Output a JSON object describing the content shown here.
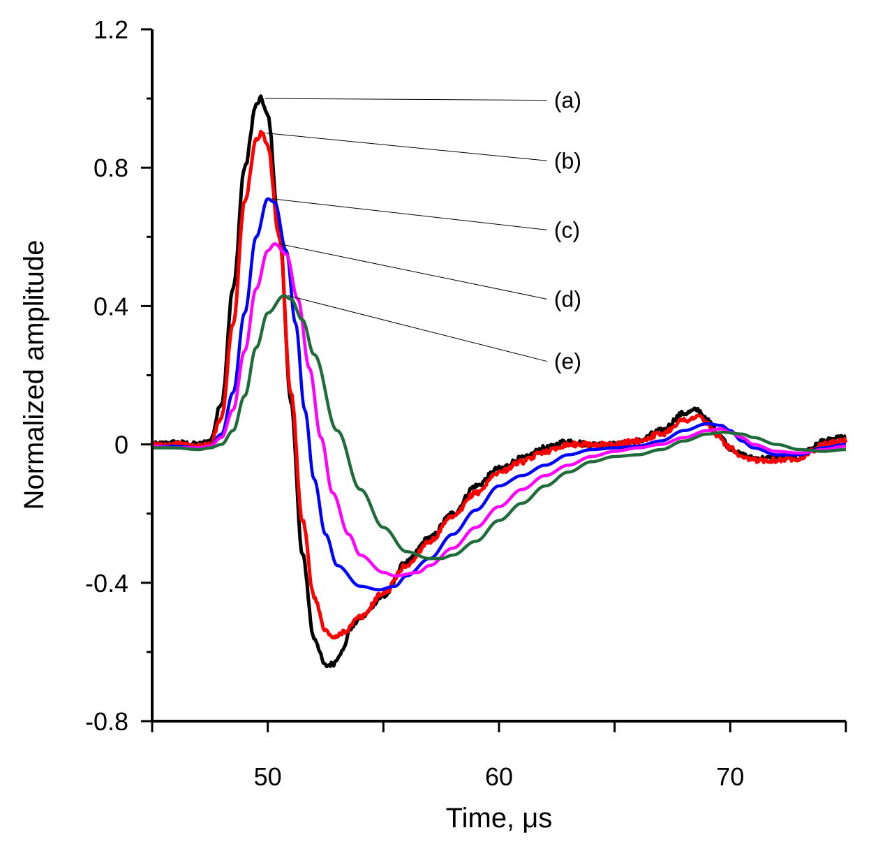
{
  "chart_data": {
    "type": "line",
    "title": "",
    "xlabel": "Time, μs",
    "ylabel": "Normalized amplitude",
    "xlim": [
      45,
      75
    ],
    "ylim": [
      -0.8,
      1.2
    ],
    "x_ticks": [
      50,
      60,
      70
    ],
    "x_tick_labels": [
      "50",
      "60",
      "70"
    ],
    "x_minor_ticks": [
      45,
      55,
      65,
      75
    ],
    "y_ticks": [
      -0.8,
      -0.4,
      0,
      0.4,
      0.8,
      1.2
    ],
    "y_tick_labels": [
      "-0.8",
      "-0.4",
      "0",
      "0.4",
      "0.8",
      "1.2"
    ],
    "y_minor_ticks": [
      -0.6,
      -0.2,
      0.2,
      0.6,
      1.0
    ],
    "grid": false,
    "series": [
      {
        "name": "(a)",
        "color": "#000000",
        "noisy": true,
        "peak": [
          49.7,
          1.0
        ],
        "label_anchor": [
          62.2,
          0.995
        ],
        "points": [
          [
            45,
            0.0
          ],
          [
            46,
            0.005
          ],
          [
            47,
            0.0
          ],
          [
            47.5,
            0.01
          ],
          [
            48,
            0.12
          ],
          [
            48.5,
            0.45
          ],
          [
            49,
            0.8
          ],
          [
            49.5,
            0.98
          ],
          [
            49.7,
            1.0
          ],
          [
            50,
            0.95
          ],
          [
            50.5,
            0.62
          ],
          [
            51,
            0.12
          ],
          [
            51.5,
            -0.32
          ],
          [
            52,
            -0.56
          ],
          [
            52.5,
            -0.64
          ],
          [
            52.8,
            -0.635
          ],
          [
            53.2,
            -0.6
          ],
          [
            53.6,
            -0.53
          ],
          [
            54,
            -0.5
          ],
          [
            55,
            -0.44
          ],
          [
            56,
            -0.34
          ],
          [
            57,
            -0.27
          ],
          [
            58,
            -0.2
          ],
          [
            59,
            -0.12
          ],
          [
            60,
            -0.07
          ],
          [
            61,
            -0.04
          ],
          [
            62,
            -0.01
          ],
          [
            63,
            0.01
          ],
          [
            64,
            0.0
          ],
          [
            65,
            0.0
          ],
          [
            66,
            0.01
          ],
          [
            67,
            0.04
          ],
          [
            68,
            0.09
          ],
          [
            68.6,
            0.1
          ],
          [
            69,
            0.07
          ],
          [
            69.5,
            0.03
          ],
          [
            70,
            -0.01
          ],
          [
            70.5,
            -0.03
          ],
          [
            71,
            -0.04
          ],
          [
            72,
            -0.04
          ],
          [
            73,
            -0.04
          ],
          [
            73.5,
            -0.01
          ],
          [
            74,
            0.01
          ],
          [
            75,
            0.02
          ]
        ]
      },
      {
        "name": "(b)",
        "color": "#ff0000",
        "noisy": true,
        "peak": [
          49.75,
          0.9
        ],
        "label_anchor": [
          62.2,
          0.82
        ],
        "points": [
          [
            45,
            0.0
          ],
          [
            46,
            0.0
          ],
          [
            47,
            -0.005
          ],
          [
            47.5,
            0.0
          ],
          [
            48,
            0.08
          ],
          [
            48.5,
            0.35
          ],
          [
            49,
            0.7
          ],
          [
            49.5,
            0.88
          ],
          [
            49.75,
            0.9
          ],
          [
            50,
            0.86
          ],
          [
            50.5,
            0.6
          ],
          [
            51,
            0.15
          ],
          [
            51.5,
            -0.22
          ],
          [
            52,
            -0.44
          ],
          [
            52.5,
            -0.54
          ],
          [
            52.9,
            -0.56
          ],
          [
            53.3,
            -0.54
          ],
          [
            54,
            -0.5
          ],
          [
            55,
            -0.43
          ],
          [
            56,
            -0.35
          ],
          [
            57,
            -0.28
          ],
          [
            58,
            -0.21
          ],
          [
            59,
            -0.14
          ],
          [
            60,
            -0.08
          ],
          [
            61,
            -0.05
          ],
          [
            62,
            -0.02
          ],
          [
            63,
            0.0
          ],
          [
            64,
            0.0
          ],
          [
            65,
            0.0
          ],
          [
            66,
            0.01
          ],
          [
            67,
            0.03
          ],
          [
            68,
            0.07
          ],
          [
            68.7,
            0.08
          ],
          [
            69,
            0.06
          ],
          [
            69.5,
            0.02
          ],
          [
            70,
            -0.01
          ],
          [
            70.5,
            -0.04
          ],
          [
            71,
            -0.045
          ],
          [
            72,
            -0.045
          ],
          [
            73,
            -0.04
          ],
          [
            73.5,
            -0.02
          ],
          [
            74,
            0.0
          ],
          [
            75,
            0.01
          ]
        ]
      },
      {
        "name": "(c)",
        "color": "#0000ff",
        "noisy": false,
        "peak": [
          50.0,
          0.71
        ],
        "label_anchor": [
          62.2,
          0.62
        ],
        "points": [
          [
            45,
            -0.005
          ],
          [
            46,
            -0.005
          ],
          [
            47,
            -0.01
          ],
          [
            47.5,
            -0.005
          ],
          [
            48,
            0.03
          ],
          [
            48.5,
            0.15
          ],
          [
            49,
            0.38
          ],
          [
            49.5,
            0.6
          ],
          [
            50,
            0.71
          ],
          [
            50.3,
            0.7
          ],
          [
            50.8,
            0.56
          ],
          [
            51.2,
            0.35
          ],
          [
            51.6,
            0.1
          ],
          [
            52,
            -0.1
          ],
          [
            52.5,
            -0.26
          ],
          [
            53,
            -0.35
          ],
          [
            54,
            -0.41
          ],
          [
            54.8,
            -0.42
          ],
          [
            55.5,
            -0.41
          ],
          [
            56,
            -0.38
          ],
          [
            57,
            -0.33
          ],
          [
            58,
            -0.26
          ],
          [
            59,
            -0.19
          ],
          [
            60,
            -0.12
          ],
          [
            61,
            -0.09
          ],
          [
            62,
            -0.06
          ],
          [
            63,
            -0.03
          ],
          [
            64,
            -0.015
          ],
          [
            65,
            -0.01
          ],
          [
            66,
            -0.005
          ],
          [
            67,
            0.01
          ],
          [
            68,
            0.04
          ],
          [
            69,
            0.06
          ],
          [
            69.6,
            0.055
          ],
          [
            70,
            0.04
          ],
          [
            70.5,
            0.01
          ],
          [
            71,
            -0.01
          ],
          [
            72,
            -0.03
          ],
          [
            73,
            -0.03
          ],
          [
            74,
            -0.01
          ],
          [
            75,
            0.0
          ]
        ]
      },
      {
        "name": "(d)",
        "color": "#ff00ff",
        "noisy": false,
        "peak": [
          50.3,
          0.58
        ],
        "label_anchor": [
          62.2,
          0.42
        ],
        "points": [
          [
            45,
            -0.005
          ],
          [
            46,
            -0.01
          ],
          [
            47,
            -0.01
          ],
          [
            47.5,
            -0.005
          ],
          [
            48,
            0.02
          ],
          [
            48.5,
            0.1
          ],
          [
            49,
            0.27
          ],
          [
            49.5,
            0.45
          ],
          [
            50,
            0.56
          ],
          [
            50.3,
            0.58
          ],
          [
            50.8,
            0.55
          ],
          [
            51.3,
            0.42
          ],
          [
            51.8,
            0.22
          ],
          [
            52.3,
            0.02
          ],
          [
            52.8,
            -0.14
          ],
          [
            53.5,
            -0.26
          ],
          [
            54,
            -0.32
          ],
          [
            55,
            -0.37
          ],
          [
            55.5,
            -0.38
          ],
          [
            56.5,
            -0.37
          ],
          [
            57,
            -0.35
          ],
          [
            58,
            -0.3
          ],
          [
            59,
            -0.24
          ],
          [
            60,
            -0.18
          ],
          [
            61,
            -0.13
          ],
          [
            62,
            -0.09
          ],
          [
            63,
            -0.06
          ],
          [
            64,
            -0.035
          ],
          [
            65,
            -0.02
          ],
          [
            66,
            -0.01
          ],
          [
            67,
            0.0
          ],
          [
            68,
            0.02
          ],
          [
            69,
            0.04
          ],
          [
            69.6,
            0.045
          ],
          [
            70,
            0.035
          ],
          [
            70.5,
            0.02
          ],
          [
            71,
            0.0
          ],
          [
            72,
            -0.02
          ],
          [
            73,
            -0.025
          ],
          [
            74,
            -0.015
          ],
          [
            75,
            -0.005
          ]
        ]
      },
      {
        "name": "(e)",
        "color": "#1f6b3a",
        "noisy": false,
        "peak": [
          50.7,
          0.43
        ],
        "label_anchor": [
          62.2,
          0.24
        ],
        "points": [
          [
            45,
            -0.01
          ],
          [
            46,
            -0.01
          ],
          [
            47,
            -0.015
          ],
          [
            47.5,
            -0.01
          ],
          [
            48,
            0.0
          ],
          [
            48.5,
            0.04
          ],
          [
            49,
            0.14
          ],
          [
            49.5,
            0.28
          ],
          [
            50,
            0.38
          ],
          [
            50.7,
            0.43
          ],
          [
            51,
            0.42
          ],
          [
            51.5,
            0.36
          ],
          [
            52,
            0.26
          ],
          [
            53,
            0.04
          ],
          [
            54,
            -0.13
          ],
          [
            55,
            -0.24
          ],
          [
            56,
            -0.31
          ],
          [
            57,
            -0.33
          ],
          [
            57.5,
            -0.33
          ],
          [
            58,
            -0.32
          ],
          [
            59,
            -0.28
          ],
          [
            60,
            -0.22
          ],
          [
            61,
            -0.17
          ],
          [
            62,
            -0.12
          ],
          [
            63,
            -0.08
          ],
          [
            64,
            -0.05
          ],
          [
            65,
            -0.035
          ],
          [
            66,
            -0.03
          ],
          [
            67,
            -0.015
          ],
          [
            68,
            0.01
          ],
          [
            69,
            0.03
          ],
          [
            69.7,
            0.035
          ],
          [
            70.5,
            0.03
          ],
          [
            71,
            0.02
          ],
          [
            72,
            0.0
          ],
          [
            73,
            -0.015
          ],
          [
            74,
            -0.02
          ],
          [
            75,
            -0.015
          ]
        ]
      }
    ]
  }
}
